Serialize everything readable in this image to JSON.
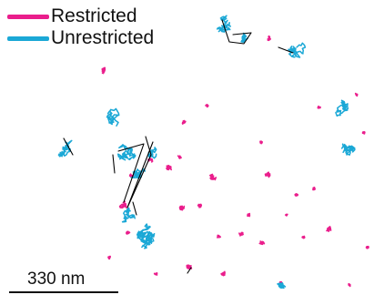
{
  "legend": [
    {
      "label": "Restricted",
      "color": "#ea1e8c"
    },
    {
      "label": "Unrestricted",
      "color": "#1ba8d6"
    }
  ],
  "scale_bar": {
    "label": "330 nm"
  },
  "colors": {
    "restricted": "#ea1e8c",
    "unrestricted": "#1ba8d6",
    "jump_line": "#000000",
    "background": "#ffffff"
  }
}
